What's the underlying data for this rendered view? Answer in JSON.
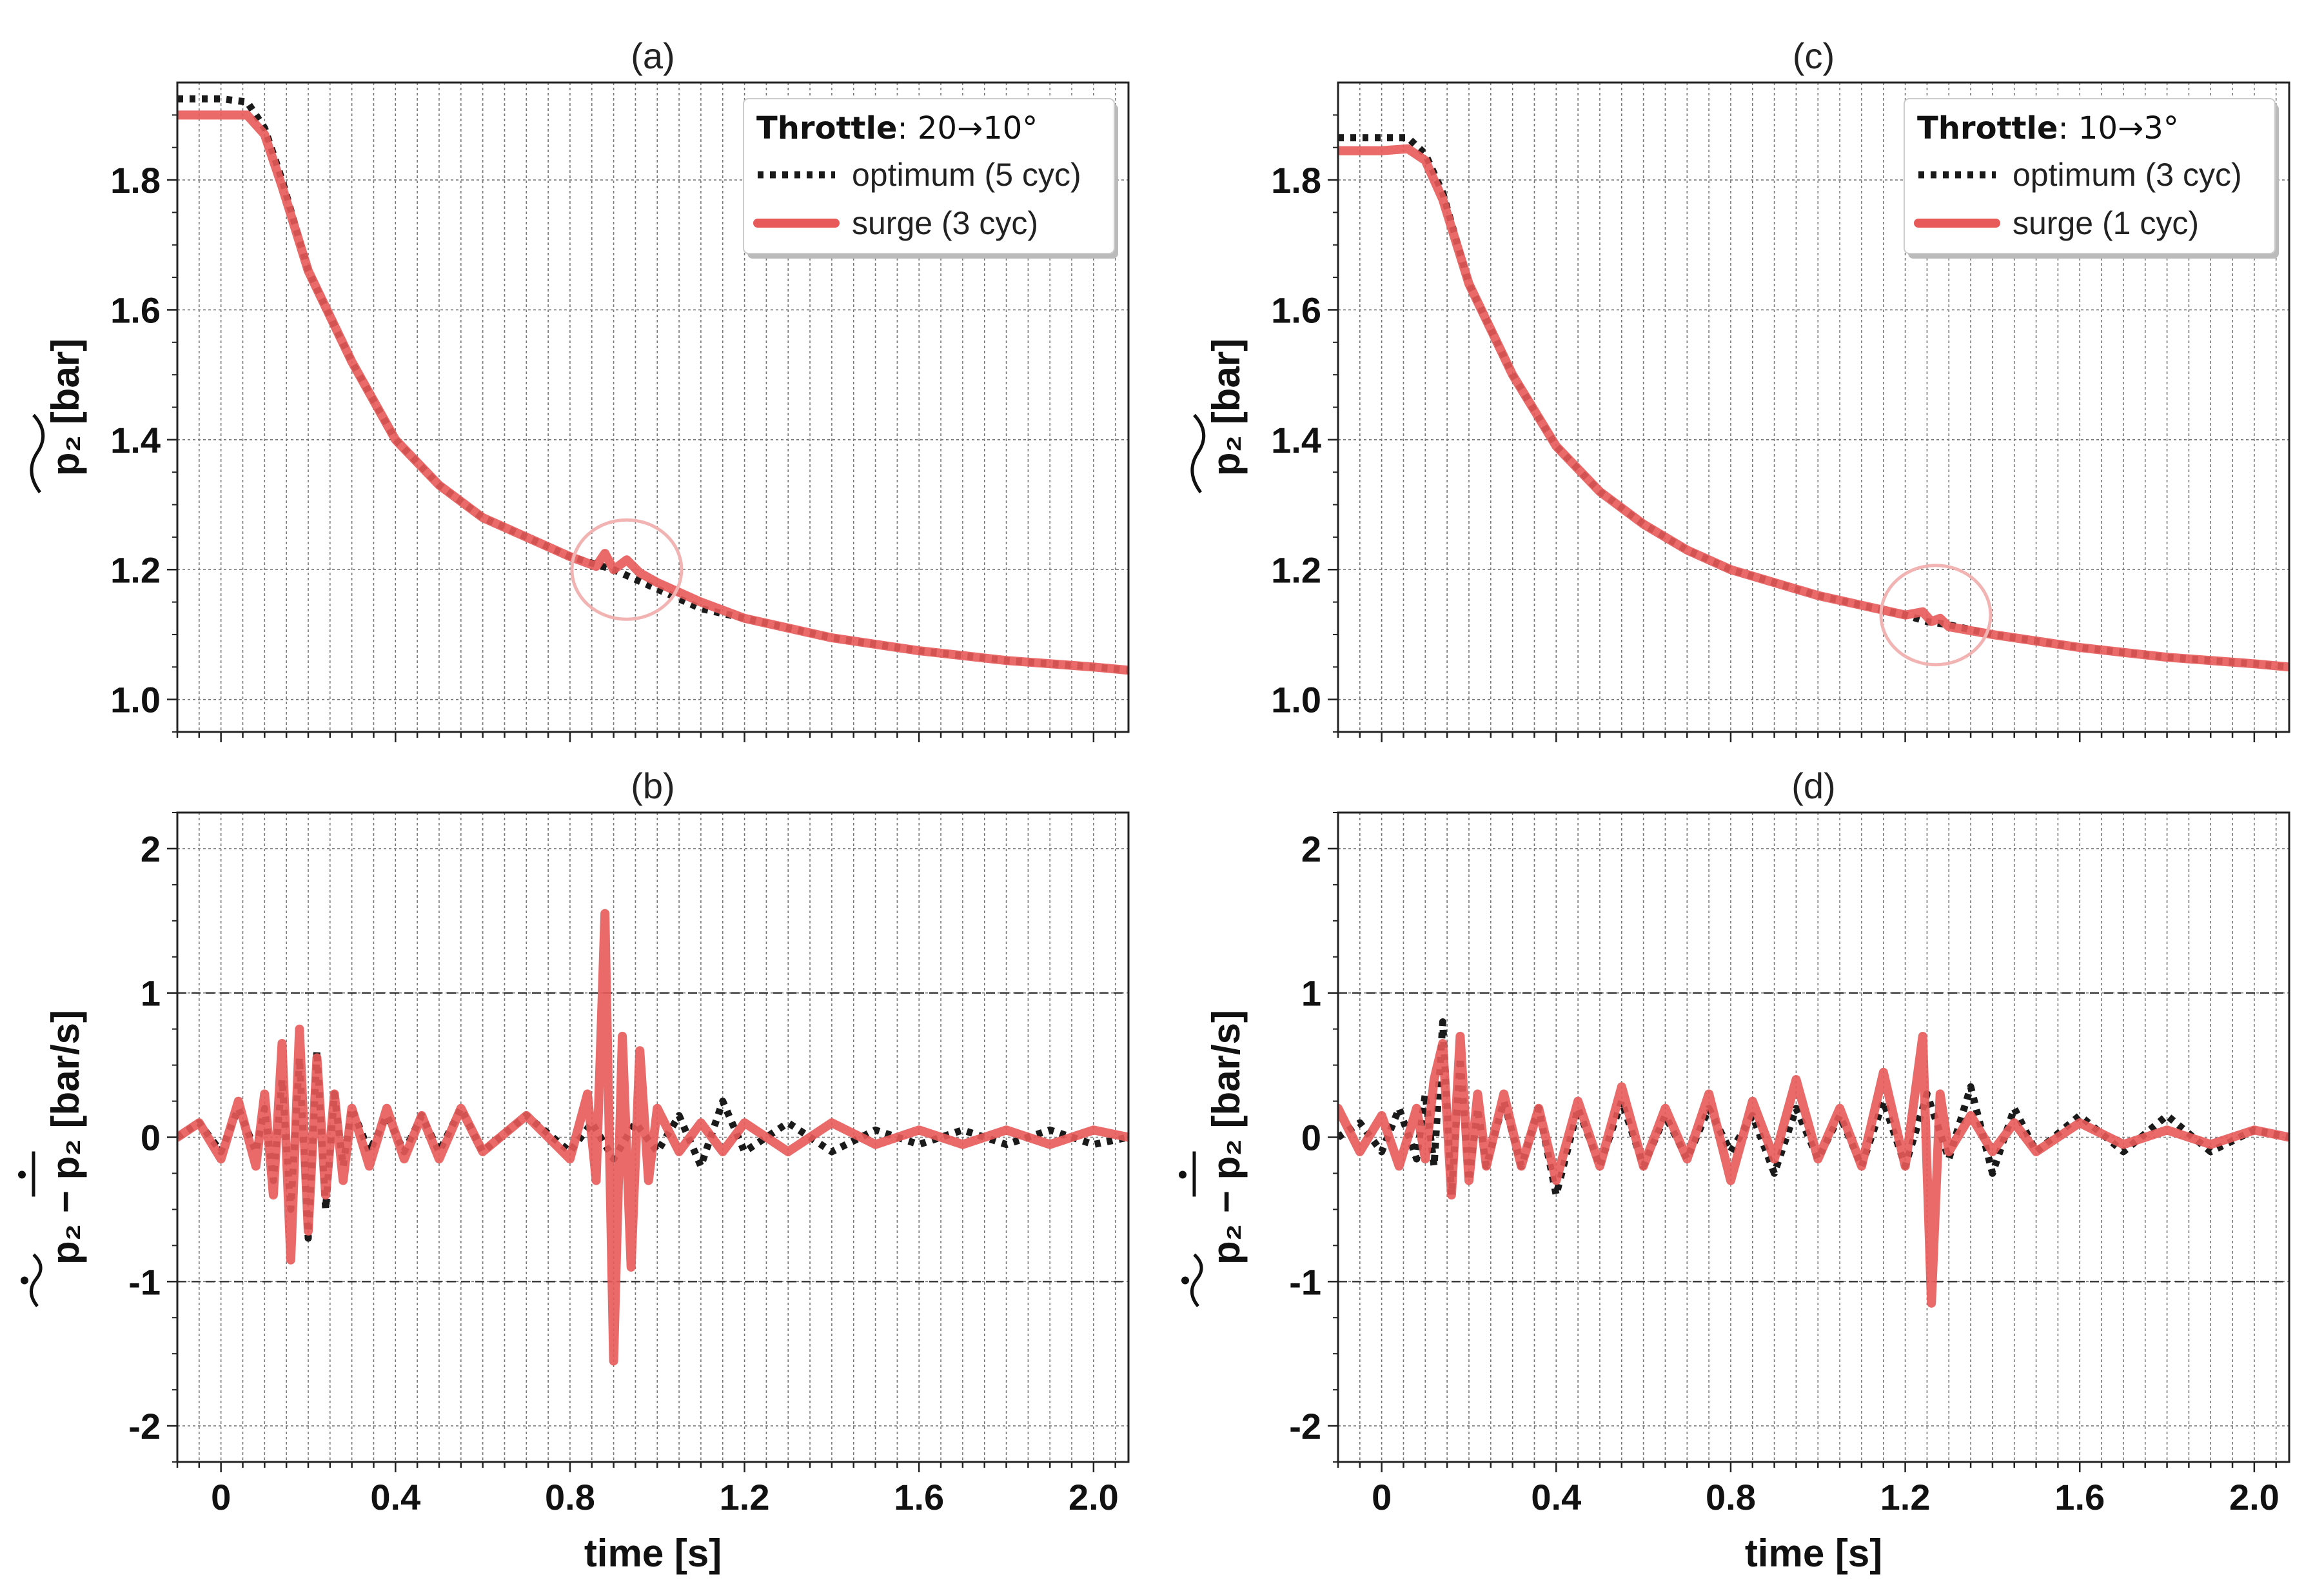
{
  "chart_data": [
    {
      "type": "line",
      "panel": "(a)",
      "title": "(a)",
      "xlabel": "",
      "ylabel": "p2 [bar]",
      "xlim": [
        -0.1,
        2.08
      ],
      "ylim": [
        0.95,
        1.95
      ],
      "xticks": [
        0,
        0.4,
        0.8,
        1.2,
        1.6,
        2.0
      ],
      "xtick_labels": [
        "",
        "",
        "",
        "",
        "",
        ""
      ],
      "yticks": [
        1.0,
        1.2,
        1.4,
        1.6,
        1.8
      ],
      "ytick_labels": [
        "1.0",
        "1.2",
        "1.4",
        "1.6",
        "1.8"
      ],
      "legend": {
        "title_bold": "Throttle",
        "title_rest": ": 20→10°",
        "entries": [
          "optimum (5 cyc)",
          "surge (3 cyc)"
        ],
        "placement": "top-right"
      },
      "annotation": {
        "type": "circle",
        "x": 0.93,
        "y": 1.2
      },
      "series": [
        {
          "name": "optimum (5 cyc)",
          "style": "dotted",
          "color": "#1a1a1a",
          "x": [
            -0.1,
            0,
            0.06,
            0.1,
            0.14,
            0.2,
            0.3,
            0.4,
            0.5,
            0.6,
            0.7,
            0.8,
            0.9,
            1.0,
            1.1,
            1.2,
            1.4,
            1.6,
            1.8,
            2.0,
            2.08
          ],
          "values": [
            1.925,
            1.925,
            1.92,
            1.88,
            1.8,
            1.66,
            1.52,
            1.4,
            1.33,
            1.28,
            1.25,
            1.22,
            1.2,
            1.17,
            1.14,
            1.125,
            1.095,
            1.075,
            1.06,
            1.05,
            1.045
          ]
        },
        {
          "name": "surge (3 cyc)",
          "style": "solid",
          "color": "#e85a5a",
          "x": [
            -0.1,
            0,
            0.06,
            0.1,
            0.14,
            0.2,
            0.3,
            0.4,
            0.5,
            0.6,
            0.7,
            0.8,
            0.86,
            0.88,
            0.9,
            0.93,
            0.96,
            1.0,
            1.1,
            1.2,
            1.4,
            1.6,
            1.8,
            2.0,
            2.08
          ],
          "values": [
            1.9,
            1.9,
            1.9,
            1.87,
            1.79,
            1.66,
            1.52,
            1.4,
            1.33,
            1.28,
            1.25,
            1.22,
            1.205,
            1.225,
            1.2,
            1.215,
            1.195,
            1.18,
            1.15,
            1.125,
            1.095,
            1.075,
            1.06,
            1.05,
            1.045
          ]
        }
      ]
    },
    {
      "type": "line",
      "panel": "(b)",
      "title": "(b)",
      "xlabel": "time [s]",
      "ylabel": "p2dot - mean [bar/s]",
      "xlim": [
        -0.1,
        2.08
      ],
      "ylim": [
        -2.25,
        2.25
      ],
      "xticks": [
        0,
        0.4,
        0.8,
        1.2,
        1.6,
        2.0
      ],
      "xtick_labels": [
        "0",
        "0.4",
        "0.8",
        "1.2",
        "1.6",
        "2.0"
      ],
      "yticks": [
        -2,
        -1,
        0,
        1,
        2
      ],
      "ytick_labels": [
        "-2",
        "-1",
        "0",
        "1",
        "2"
      ],
      "hlines": [
        1,
        -1
      ],
      "series": [
        {
          "name": "optimum (5 cyc)",
          "style": "dotted",
          "color": "#1a1a1a",
          "x": [
            -0.1,
            -0.05,
            0,
            0.04,
            0.08,
            0.1,
            0.12,
            0.14,
            0.16,
            0.18,
            0.2,
            0.22,
            0.24,
            0.26,
            0.28,
            0.3,
            0.34,
            0.38,
            0.42,
            0.46,
            0.5,
            0.55,
            0.6,
            0.7,
            0.8,
            0.85,
            0.9,
            0.95,
            1.0,
            1.05,
            1.1,
            1.15,
            1.2,
            1.3,
            1.4,
            1.5,
            1.6,
            1.7,
            1.8,
            1.9,
            2.0,
            2.08
          ],
          "values": [
            0,
            0.1,
            -0.1,
            0.2,
            -0.1,
            0.2,
            -0.3,
            0.4,
            -0.5,
            0.55,
            -0.7,
            0.6,
            -0.5,
            0.3,
            -0.2,
            0.2,
            -0.1,
            0.15,
            -0.1,
            0.15,
            -0.1,
            0.2,
            -0.1,
            0.15,
            -0.1,
            0.1,
            -0.15,
            0.1,
            -0.1,
            0.15,
            -0.2,
            0.25,
            -0.1,
            0.1,
            -0.1,
            0.05,
            -0.05,
            0.05,
            -0.05,
            0.05,
            -0.05,
            0
          ]
        },
        {
          "name": "surge (3 cyc)",
          "style": "solid",
          "color": "#e85a5a",
          "x": [
            -0.1,
            -0.05,
            0,
            0.04,
            0.08,
            0.1,
            0.12,
            0.14,
            0.16,
            0.18,
            0.2,
            0.22,
            0.24,
            0.26,
            0.28,
            0.3,
            0.34,
            0.38,
            0.42,
            0.46,
            0.5,
            0.55,
            0.6,
            0.7,
            0.8,
            0.84,
            0.86,
            0.88,
            0.9,
            0.92,
            0.94,
            0.96,
            0.98,
            1.0,
            1.05,
            1.1,
            1.15,
            1.2,
            1.3,
            1.4,
            1.5,
            1.6,
            1.7,
            1.8,
            1.9,
            2.0,
            2.08
          ],
          "values": [
            0,
            0.1,
            -0.15,
            0.25,
            -0.2,
            0.3,
            -0.4,
            0.65,
            -0.85,
            0.75,
            -0.65,
            0.55,
            -0.4,
            0.3,
            -0.3,
            0.2,
            -0.2,
            0.2,
            -0.15,
            0.15,
            -0.15,
            0.2,
            -0.1,
            0.15,
            -0.15,
            0.3,
            -0.3,
            1.55,
            -1.55,
            0.7,
            -0.9,
            0.6,
            -0.3,
            0.2,
            -0.1,
            0.1,
            -0.1,
            0.1,
            -0.1,
            0.1,
            -0.05,
            0.05,
            -0.05,
            0.05,
            -0.05,
            0.05,
            0
          ]
        }
      ]
    },
    {
      "type": "line",
      "panel": "(c)",
      "title": "(c)",
      "xlabel": "",
      "ylabel": "p2 [bar]",
      "xlim": [
        -0.1,
        2.08
      ],
      "ylim": [
        0.95,
        1.95
      ],
      "xticks": [
        0,
        0.4,
        0.8,
        1.2,
        1.6,
        2.0
      ],
      "xtick_labels": [
        "",
        "",
        "",
        "",
        "",
        ""
      ],
      "yticks": [
        1.0,
        1.2,
        1.4,
        1.6,
        1.8
      ],
      "ytick_labels": [
        "1.0",
        "1.2",
        "1.4",
        "1.6",
        "1.8"
      ],
      "legend": {
        "title_bold": "Throttle",
        "title_rest": ": 10→3°",
        "entries": [
          "optimum (3 cyc)",
          "surge (1 cyc)"
        ],
        "placement": "top-right"
      },
      "annotation": {
        "type": "circle",
        "x": 1.27,
        "y": 1.13
      },
      "series": [
        {
          "name": "optimum (3 cyc)",
          "style": "dotted",
          "color": "#1a1a1a",
          "x": [
            -0.1,
            0,
            0.06,
            0.1,
            0.14,
            0.2,
            0.3,
            0.4,
            0.5,
            0.6,
            0.7,
            0.8,
            0.9,
            1.0,
            1.1,
            1.2,
            1.25,
            1.3,
            1.4,
            1.6,
            1.8,
            2.0,
            2.08
          ],
          "values": [
            1.865,
            1.865,
            1.865,
            1.84,
            1.78,
            1.64,
            1.5,
            1.39,
            1.32,
            1.27,
            1.23,
            1.2,
            1.18,
            1.16,
            1.145,
            1.13,
            1.12,
            1.115,
            1.1,
            1.08,
            1.065,
            1.055,
            1.05
          ]
        },
        {
          "name": "surge (1 cyc)",
          "style": "solid",
          "color": "#e85a5a",
          "x": [
            -0.1,
            0,
            0.06,
            0.1,
            0.14,
            0.2,
            0.3,
            0.4,
            0.5,
            0.6,
            0.7,
            0.8,
            0.9,
            1.0,
            1.1,
            1.2,
            1.24,
            1.26,
            1.28,
            1.3,
            1.4,
            1.6,
            1.8,
            2.0,
            2.08
          ],
          "values": [
            1.845,
            1.845,
            1.848,
            1.83,
            1.77,
            1.64,
            1.5,
            1.39,
            1.32,
            1.27,
            1.23,
            1.2,
            1.18,
            1.16,
            1.145,
            1.13,
            1.135,
            1.12,
            1.125,
            1.112,
            1.1,
            1.08,
            1.065,
            1.055,
            1.05
          ]
        }
      ]
    },
    {
      "type": "line",
      "panel": "(d)",
      "title": "(d)",
      "xlabel": "time [s]",
      "ylabel": "p2dot - mean [bar/s]",
      "xlim": [
        -0.1,
        2.08
      ],
      "ylim": [
        -2.25,
        2.25
      ],
      "xticks": [
        0,
        0.4,
        0.8,
        1.2,
        1.6,
        2.0
      ],
      "xtick_labels": [
        "0",
        "0.4",
        "0.8",
        "1.2",
        "1.6",
        "2.0"
      ],
      "yticks": [
        -2,
        -1,
        0,
        1,
        2
      ],
      "ytick_labels": [
        "-2",
        "-1",
        "0",
        "1",
        "2"
      ],
      "hlines": [
        1,
        -1
      ],
      "series": [
        {
          "name": "optimum (3 cyc)",
          "style": "dotted",
          "color": "#1a1a1a",
          "x": [
            -0.1,
            -0.05,
            0,
            0.04,
            0.08,
            0.1,
            0.12,
            0.14,
            0.16,
            0.18,
            0.2,
            0.22,
            0.24,
            0.28,
            0.32,
            0.36,
            0.4,
            0.45,
            0.5,
            0.55,
            0.6,
            0.65,
            0.7,
            0.75,
            0.8,
            0.85,
            0.9,
            0.95,
            1.0,
            1.05,
            1.1,
            1.15,
            1.2,
            1.25,
            1.3,
            1.35,
            1.4,
            1.45,
            1.5,
            1.6,
            1.7,
            1.8,
            1.9,
            2.0,
            2.08
          ],
          "values": [
            0,
            0.1,
            -0.1,
            0.2,
            -0.15,
            0.3,
            -0.2,
            0.8,
            -0.4,
            0.55,
            -0.3,
            0.2,
            -0.2,
            0.25,
            -0.2,
            0.2,
            -0.4,
            0.2,
            -0.2,
            0.25,
            -0.2,
            0.15,
            -0.15,
            0.2,
            -0.1,
            0.15,
            -0.25,
            0.2,
            -0.15,
            0.15,
            -0.2,
            0.25,
            -0.2,
            0.3,
            -0.15,
            0.35,
            -0.25,
            0.2,
            -0.1,
            0.15,
            -0.1,
            0.15,
            -0.1,
            0.05,
            0
          ]
        },
        {
          "name": "surge (1 cyc)",
          "style": "solid",
          "color": "#e85a5a",
          "x": [
            -0.1,
            -0.05,
            0,
            0.04,
            0.08,
            0.1,
            0.12,
            0.14,
            0.16,
            0.18,
            0.2,
            0.22,
            0.24,
            0.28,
            0.32,
            0.36,
            0.4,
            0.45,
            0.5,
            0.55,
            0.6,
            0.65,
            0.7,
            0.75,
            0.8,
            0.85,
            0.9,
            0.95,
            1.0,
            1.05,
            1.1,
            1.15,
            1.2,
            1.24,
            1.26,
            1.28,
            1.3,
            1.35,
            1.4,
            1.45,
            1.5,
            1.6,
            1.7,
            1.8,
            1.9,
            2.0,
            2.08
          ],
          "values": [
            0.2,
            -0.1,
            0.15,
            -0.2,
            0.2,
            -0.15,
            0.4,
            0.65,
            -0.4,
            0.7,
            -0.3,
            0.3,
            -0.2,
            0.3,
            -0.2,
            0.2,
            -0.3,
            0.25,
            -0.2,
            0.35,
            -0.2,
            0.2,
            -0.15,
            0.3,
            -0.3,
            0.25,
            -0.15,
            0.4,
            -0.15,
            0.2,
            -0.2,
            0.45,
            -0.2,
            0.7,
            -1.15,
            0.3,
            -0.1,
            0.15,
            -0.1,
            0.1,
            -0.1,
            0.1,
            -0.05,
            0.05,
            -0.05,
            0.05,
            0
          ]
        }
      ]
    }
  ]
}
